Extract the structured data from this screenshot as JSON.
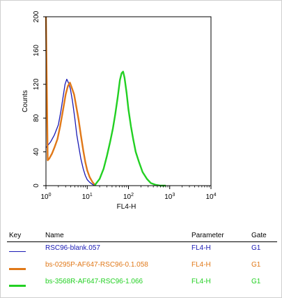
{
  "chart_data": {
    "type": "line",
    "ylabel": "Counts",
    "xlabel": "FL4-H",
    "xscale": "log",
    "xlim": [
      1,
      10000
    ],
    "ylim": [
      0,
      200
    ],
    "x_ticks": [
      {
        "base": "10",
        "exp": "0"
      },
      {
        "base": "10",
        "exp": "1"
      },
      {
        "base": "10",
        "exp": "2"
      },
      {
        "base": "10",
        "exp": "3"
      },
      {
        "base": "10",
        "exp": "4"
      }
    ],
    "y_ticks": [
      "0",
      "40",
      "80",
      "120",
      "160",
      "200"
    ],
    "series": [
      {
        "name": "RSC96-blank.057",
        "color": "#1a1ab4",
        "x": [
          1.0,
          1.3,
          1.6,
          2.0,
          2.3,
          2.6,
          2.9,
          3.2,
          3.5,
          3.9,
          4.4,
          5.0,
          5.6,
          6.3,
          7.0,
          8.0,
          9.0,
          10.0,
          11.5,
          13.0,
          15.0
        ],
        "y": [
          45,
          52,
          60,
          72,
          88,
          105,
          120,
          126,
          122,
          115,
          100,
          80,
          60,
          45,
          32,
          20,
          12,
          7,
          4,
          2,
          0
        ]
      },
      {
        "name": "bs-0295P-AF647-RSC96-0.1.058",
        "color": "#e07818",
        "x": [
          1.0,
          1.1,
          1.2,
          1.4,
          1.6,
          1.9,
          2.2,
          2.6,
          3.0,
          3.4,
          3.8,
          4.3,
          4.8,
          5.5,
          6.2,
          7.0,
          8.0,
          9.0,
          10.0,
          11.5,
          13.5,
          16.0
        ],
        "y": [
          200,
          30,
          32,
          38,
          45,
          55,
          70,
          90,
          108,
          118,
          122,
          115,
          108,
          92,
          78,
          60,
          42,
          28,
          18,
          10,
          4,
          0
        ]
      },
      {
        "name": "bs-3568R-AF647-RSC96-1.066",
        "color": "#22d022",
        "x": [
          15,
          20,
          25,
          30,
          36,
          42,
          48,
          55,
          62,
          68,
          74,
          80,
          90,
          100,
          115,
          130,
          150,
          180,
          220,
          280,
          350,
          450,
          600,
          800
        ],
        "y": [
          0,
          8,
          20,
          35,
          52,
          68,
          85,
          105,
          125,
          133,
          135,
          128,
          110,
          90,
          70,
          55,
          40,
          28,
          16,
          8,
          3,
          1,
          0,
          0
        ]
      }
    ]
  },
  "legend": {
    "header": {
      "key": "Key",
      "name": "Name",
      "parameter": "Parameter",
      "gate": "Gate"
    },
    "rows": [
      {
        "name": "RSC96-blank.057",
        "parameter": "FL4-H",
        "gate": "G1",
        "color": "#1a1ab4"
      },
      {
        "name": "bs-0295P-AF647-RSC96-0.1.058",
        "parameter": "FL4-H",
        "gate": "G1",
        "color": "#e07818"
      },
      {
        "name": "bs-3568R-AF647-RSC96-1.066",
        "parameter": "FL4-H",
        "gate": "G1",
        "color": "#22d022"
      }
    ]
  }
}
